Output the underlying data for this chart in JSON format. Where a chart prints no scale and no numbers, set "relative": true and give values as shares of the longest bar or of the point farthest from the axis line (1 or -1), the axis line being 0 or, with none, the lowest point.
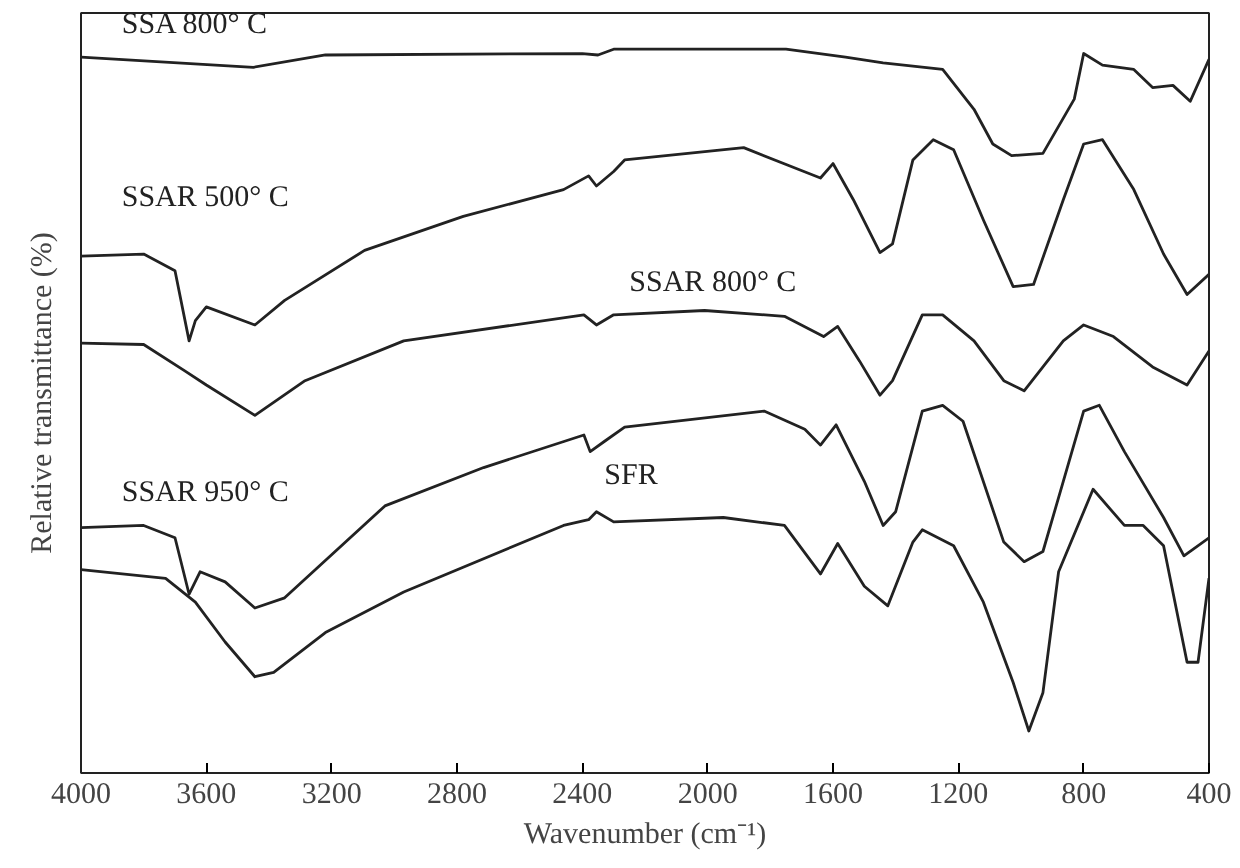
{
  "chart_data": {
    "type": "line",
    "relative": true,
    "xlabel": "Wavenumber (cm⁻¹)",
    "ylabel": "Relative transmittance (%)",
    "xlim": [
      4000,
      400
    ],
    "xticks": [
      4000,
      3600,
      3200,
      2800,
      2400,
      2000,
      1600,
      1200,
      800,
      400
    ],
    "grid": false,
    "legend": false,
    "tick_labels": "x",
    "line_style": "solid",
    "series": [
      {
        "name": "SSA 800° C",
        "color": "#222222",
        "x": [
          4000,
          3450,
          3220,
          2400,
          2350,
          2300,
          1750,
          1560,
          1440,
          1250,
          1150,
          1090,
          1030,
          930,
          830,
          800,
          740,
          640,
          580,
          515,
          460,
          400
        ],
        "values": [
          0.989,
          0.975,
          0.992,
          0.994,
          0.992,
          1.0,
          1.0,
          0.989,
          0.981,
          0.972,
          0.917,
          0.869,
          0.853,
          0.856,
          0.931,
          0.994,
          0.978,
          0.972,
          0.947,
          0.95,
          0.928,
          0.986
        ]
      },
      {
        "name": "SSAR 500° C",
        "color": "#222222",
        "x": [
          4000,
          3800,
          3700,
          3655,
          3635,
          3600,
          3445,
          3350,
          3095,
          2780,
          2460,
          2380,
          2355,
          2300,
          2265,
          1885,
          1705,
          1640,
          1600,
          1535,
          1450,
          1410,
          1345,
          1280,
          1215,
          1120,
          1025,
          960,
          865,
          800,
          740,
          640,
          545,
          470,
          400
        ],
        "values": [
          0.714,
          0.717,
          0.694,
          0.597,
          0.625,
          0.644,
          0.619,
          0.653,
          0.722,
          0.769,
          0.806,
          0.825,
          0.811,
          0.831,
          0.847,
          0.864,
          0.833,
          0.822,
          0.842,
          0.792,
          0.719,
          0.731,
          0.847,
          0.875,
          0.861,
          0.764,
          0.672,
          0.675,
          0.792,
          0.869,
          0.875,
          0.806,
          0.717,
          0.661,
          0.689
        ]
      },
      {
        "name": "SSAR 800° C",
        "color": "#222222",
        "x": [
          4000,
          3800,
          3670,
          3600,
          3445,
          3285,
          2970,
          2395,
          2355,
          2300,
          2010,
          1755,
          1630,
          1585,
          1515,
          1450,
          1410,
          1315,
          1250,
          1150,
          1055,
          990,
          865,
          800,
          705,
          580,
          470,
          400
        ],
        "values": [
          0.594,
          0.592,
          0.556,
          0.536,
          0.494,
          0.542,
          0.597,
          0.633,
          0.619,
          0.633,
          0.639,
          0.631,
          0.603,
          0.617,
          0.569,
          0.522,
          0.542,
          0.633,
          0.633,
          0.597,
          0.542,
          0.528,
          0.597,
          0.619,
          0.603,
          0.561,
          0.536,
          0.583
        ]
      },
      {
        "name": "SSAR 950° C",
        "color": "#222222",
        "x": [
          4000,
          3800,
          3700,
          3655,
          3620,
          3540,
          3445,
          3350,
          3030,
          2715,
          2395,
          2375,
          2330,
          2265,
          1820,
          1690,
          1640,
          1590,
          1500,
          1440,
          1400,
          1315,
          1250,
          1185,
          1055,
          990,
          930,
          865,
          800,
          750,
          670,
          545,
          480,
          400
        ],
        "values": [
          0.339,
          0.342,
          0.325,
          0.247,
          0.278,
          0.264,
          0.228,
          0.242,
          0.369,
          0.422,
          0.467,
          0.444,
          0.458,
          0.478,
          0.5,
          0.475,
          0.453,
          0.481,
          0.403,
          0.342,
          0.361,
          0.5,
          0.508,
          0.486,
          0.319,
          0.292,
          0.306,
          0.403,
          0.5,
          0.508,
          0.444,
          0.353,
          0.3,
          0.325
        ]
      },
      {
        "name": "SFR",
        "color": "#222222",
        "x": [
          4000,
          3730,
          3635,
          3540,
          3445,
          3385,
          3220,
          2970,
          2460,
          2380,
          2355,
          2300,
          1950,
          1755,
          1640,
          1585,
          1500,
          1425,
          1345,
          1315,
          1215,
          1120,
          1025,
          975,
          930,
          880,
          770,
          670,
          610,
          545,
          470,
          435,
          400
        ],
        "values": [
          0.281,
          0.269,
          0.236,
          0.181,
          0.133,
          0.139,
          0.194,
          0.25,
          0.342,
          0.35,
          0.361,
          0.347,
          0.353,
          0.342,
          0.275,
          0.317,
          0.258,
          0.231,
          0.319,
          0.336,
          0.314,
          0.236,
          0.125,
          0.058,
          0.111,
          0.278,
          0.392,
          0.342,
          0.342,
          0.314,
          0.153,
          0.153,
          0.269
        ]
      }
    ]
  }
}
